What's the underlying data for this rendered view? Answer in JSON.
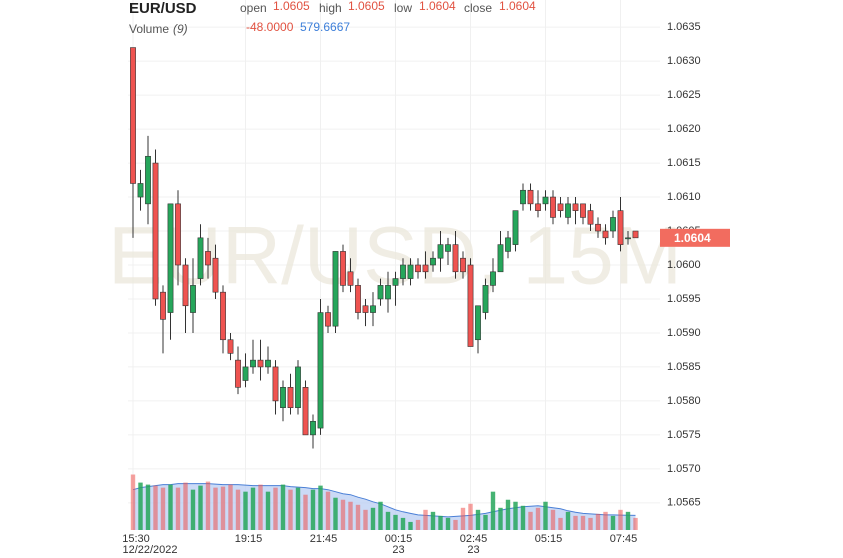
{
  "chart_data": {
    "type": "candlestick",
    "title": "EUR/USD",
    "watermark": "EUR/USD, 15M",
    "readout_labels": [
      "open",
      "high",
      "low",
      "close"
    ],
    "volume_label": "Volume",
    "volume_period": "(9)",
    "volume_change": {
      "value": -48,
      "label": "-48.0000"
    },
    "up_color": "#26a65b",
    "down_color": "#ef5350",
    "ma_color": "#4a7fd6",
    "grid": true,
    "categories": [
      "15:30",
      null,
      null,
      null,
      null,
      null,
      null,
      null,
      null,
      null,
      null,
      null,
      null,
      null,
      null,
      "19:15",
      null,
      null,
      null,
      null,
      null,
      null,
      null,
      null,
      null,
      "21:45",
      null,
      null,
      null,
      null,
      null,
      null,
      null,
      null,
      null,
      "00:15",
      null,
      null,
      null,
      null,
      null,
      null,
      null,
      null,
      null,
      "02:45",
      null,
      null,
      null,
      null,
      null,
      null,
      null,
      null,
      null,
      "05:15",
      null,
      null,
      null,
      null,
      null,
      null,
      null,
      null,
      null,
      "07:45",
      null,
      null
    ],
    "date_labels": [
      "12/22/2022",
      null,
      null,
      null,
      null,
      null,
      null,
      null,
      null,
      null,
      null,
      null,
      null,
      null,
      null,
      null,
      null,
      null,
      null,
      null,
      null,
      null,
      null,
      null,
      null,
      null,
      null,
      null,
      null,
      null,
      null,
      null,
      null,
      null,
      null,
      "23",
      null,
      null,
      null,
      null,
      null,
      null,
      null,
      null,
      null,
      "23",
      null,
      null,
      null,
      null,
      null,
      null,
      null,
      null,
      null,
      null,
      null,
      null,
      null,
      null,
      null,
      null,
      null,
      null,
      null,
      null,
      null,
      null
    ],
    "open": [
      1.0632,
      1.061,
      1.0609,
      1.0615,
      1.0596,
      1.0593,
      1.0609,
      1.06,
      1.0593,
      1.0598,
      1.0602,
      1.0601,
      1.0596,
      1.0589,
      1.0586,
      1.0583,
      1.0585,
      1.0586,
      1.0585,
      1.0585,
      1.0579,
      1.0582,
      1.0579,
      1.0582,
      1.0575,
      1.0576,
      1.0593,
      1.0591,
      1.0602,
      1.0599,
      1.0597,
      1.0594,
      1.0593,
      1.0595,
      1.0595,
      1.0597,
      1.0598,
      1.0598,
      1.06,
      1.06,
      1.06,
      1.0601,
      1.0602,
      1.0603,
      1.0601,
      1.06,
      1.0589,
      1.0593,
      1.0597,
      1.0599,
      1.0602,
      1.0603,
      1.0609,
      1.0611,
      1.0609,
      1.0609,
      1.061,
      1.0609,
      1.0607,
      1.0609,
      1.0609,
      1.0608,
      1.0606,
      1.0605,
      1.0605,
      1.0608,
      1.0604,
      1.0605
    ],
    "high": [
      1.0632,
      1.0614,
      1.0619,
      1.0617,
      1.0597,
      1.0609,
      1.0611,
      1.0601,
      1.0601,
      1.0606,
      1.0604,
      1.0603,
      1.0597,
      1.059,
      1.0588,
      1.0587,
      1.0589,
      1.0589,
      1.0588,
      1.0586,
      1.0583,
      1.0584,
      1.0586,
      1.0583,
      1.0578,
      1.0595,
      1.0594,
      1.0602,
      1.0603,
      1.0601,
      1.0598,
      1.0595,
      1.0596,
      1.0598,
      1.0599,
      1.0599,
      1.0601,
      1.0601,
      1.0601,
      1.0602,
      1.0602,
      1.0605,
      1.0604,
      1.0605,
      1.0602,
      1.0601,
      1.0594,
      1.0598,
      1.0601,
      1.0605,
      1.0605,
      1.0608,
      1.0612,
      1.0612,
      1.0611,
      1.0611,
      1.0611,
      1.061,
      1.061,
      1.061,
      1.0609,
      1.0609,
      1.0607,
      1.0606,
      1.0608,
      1.061,
      1.0605,
      1.0605
    ],
    "low": [
      1.0604,
      1.0608,
      1.0606,
      1.0594,
      1.0587,
      1.0589,
      1.0597,
      1.059,
      1.059,
      1.0597,
      1.0598,
      1.0595,
      1.0587,
      1.0586,
      1.0581,
      1.0582,
      1.0584,
      1.0583,
      1.0584,
      1.0578,
      1.0577,
      1.0578,
      1.0578,
      1.0575,
      1.0573,
      1.0575,
      1.059,
      1.059,
      1.0596,
      1.0596,
      1.0592,
      1.0591,
      1.0591,
      1.0594,
      1.0593,
      1.0594,
      1.0597,
      1.0597,
      1.0598,
      1.0598,
      1.0599,
      1.0599,
      1.06,
      1.0598,
      1.0598,
      1.0588,
      1.0587,
      1.0592,
      1.0596,
      1.0599,
      1.0601,
      1.0602,
      1.0608,
      1.0608,
      1.0607,
      1.0608,
      1.0606,
      1.0607,
      1.0606,
      1.0606,
      1.0606,
      1.0605,
      1.0604,
      1.0603,
      1.0604,
      1.0602,
      1.0603,
      1.0604
    ],
    "close": [
      1.0612,
      1.0612,
      1.0616,
      1.0595,
      1.0592,
      1.0609,
      1.06,
      1.0594,
      1.0597,
      1.0604,
      1.06,
      1.0596,
      1.0589,
      1.0587,
      1.0582,
      1.0585,
      1.0586,
      1.0585,
      1.0586,
      1.058,
      1.0582,
      1.0579,
      1.0585,
      1.0575,
      1.0577,
      1.0593,
      1.0591,
      1.0602,
      1.0597,
      1.0597,
      1.0593,
      1.0593,
      1.0594,
      1.0597,
      1.0597,
      1.0598,
      1.06,
      1.06,
      1.0599,
      1.0599,
      1.0601,
      1.0603,
      1.0603,
      1.0599,
      1.0599,
      1.0588,
      1.0594,
      1.0597,
      1.0599,
      1.0603,
      1.0604,
      1.0608,
      1.0611,
      1.0609,
      1.0608,
      1.061,
      1.0607,
      1.0608,
      1.0609,
      1.0608,
      1.0607,
      1.0606,
      1.0605,
      1.0604,
      1.0607,
      1.0603,
      1.0604,
      1.0604
    ],
    "volume": [
      2200,
      1880,
      1800,
      1760,
      1680,
      1800,
      1680,
      1880,
      1600,
      1760,
      1920,
      1680,
      1720,
      1800,
      1600,
      1520,
      1680,
      1800,
      1520,
      1680,
      1800,
      1600,
      1680,
      1400,
      1600,
      1760,
      1520,
      1280,
      1200,
      1120,
      1000,
      800,
      880,
      1120,
      720,
      600,
      480,
      320,
      400,
      800,
      720,
      560,
      480,
      400,
      880,
      1040,
      800,
      600,
      1520,
      880,
      1200,
      1120,
      960,
      720,
      880,
      1120,
      800,
      480,
      720,
      560,
      560,
      480,
      640,
      720,
      560,
      800,
      720,
      480
    ],
    "volume_ma": [
      1600,
      1680,
      1720,
      1760,
      1800,
      1800,
      1840,
      1840,
      1840,
      1840,
      1840,
      1820,
      1800,
      1800,
      1800,
      1780,
      1760,
      1760,
      1760,
      1760,
      1760,
      1720,
      1700,
      1680,
      1640,
      1640,
      1600,
      1520,
      1440,
      1400,
      1300,
      1220,
      1120,
      1040,
      920,
      800,
      720,
      660,
      600,
      580,
      560,
      540,
      520,
      540,
      560,
      580,
      620,
      660,
      720,
      780,
      840,
      880,
      920,
      940,
      960,
      920,
      880,
      840,
      760,
      700,
      660,
      640,
      620,
      600,
      600,
      590,
      585,
      579.6667
    ],
    "volume_ylim": [
      0,
      2300
    ],
    "ylim": [
      1.0561,
      1.0639
    ],
    "yticks": [
      1.0565,
      {
        "value": 1.057,
        "label": "1.0570"
      },
      1.0575,
      {
        "value": 1.058,
        "label": "1.0580"
      },
      1.0585,
      {
        "value": 1.059,
        "label": "1.0590"
      },
      1.0595,
      {
        "value": 1.06,
        "label": "1.0600"
      },
      1.0605,
      {
        "value": 1.061,
        "label": "1.0610"
      },
      1.0615,
      {
        "value": 1.062,
        "label": "1.0620"
      },
      1.0625,
      {
        "value": 1.063,
        "label": "1.0630"
      },
      1.0635
    ]
  }
}
